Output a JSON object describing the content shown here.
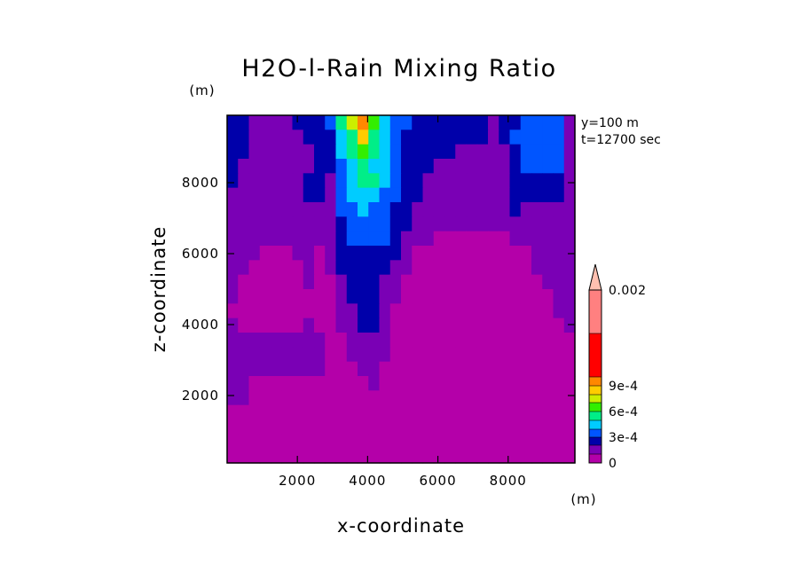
{
  "chart_data": {
    "type": "heatmap",
    "title": "H2O-l-Rain Mixing Ratio",
    "xlabel": "x-coordinate",
    "ylabel": "z-coordinate",
    "x_unit": "(m)",
    "y_unit": "(m)",
    "annotations": [
      "y=100 m",
      "t=12700 sec"
    ],
    "xlim": [
      0,
      9900
    ],
    "ylim": [
      100,
      9900
    ],
    "x_ticks": [
      2000,
      4000,
      6000,
      8000
    ],
    "y_ticks": [
      2000,
      4000,
      6000,
      8000
    ],
    "colorbar": {
      "levels": [
        0,
        0.0001,
        0.0002,
        0.0003,
        0.0004,
        0.0005,
        0.0006,
        0.0007,
        0.0008,
        0.0009,
        0.001,
        0.0015,
        0.002
      ],
      "colors": [
        "#b400a9",
        "#7a00b5",
        "#0000aa",
        "#0055ff",
        "#00ccff",
        "#00ee88",
        "#33ee00",
        "#ccee00",
        "#ffcc00",
        "#ff8800",
        "#ff0000",
        "#ff8080",
        "#ffc0b0"
      ],
      "tick_labels": [
        "0",
        "3e-4",
        "6e-4",
        "9e-4",
        "0.002"
      ],
      "extend": "max"
    },
    "grid_z": [
      [
        2,
        2,
        1,
        1,
        1,
        1,
        2,
        2,
        2,
        3,
        5,
        7,
        9,
        6,
        4,
        3,
        3,
        2,
        2,
        2,
        2,
        2,
        2,
        2,
        1,
        2,
        2,
        3,
        3,
        3,
        3,
        1
      ],
      [
        2,
        2,
        1,
        1,
        1,
        1,
        1,
        2,
        2,
        2,
        4,
        5,
        8,
        5,
        4,
        3,
        2,
        2,
        2,
        2,
        2,
        2,
        2,
        2,
        1,
        2,
        3,
        3,
        3,
        3,
        3,
        1
      ],
      [
        2,
        2,
        1,
        1,
        1,
        1,
        1,
        1,
        2,
        2,
        4,
        5,
        6,
        5,
        4,
        3,
        2,
        2,
        2,
        2,
        2,
        1,
        1,
        1,
        1,
        1,
        2,
        3,
        3,
        3,
        3,
        1
      ],
      [
        2,
        1,
        1,
        1,
        1,
        1,
        1,
        1,
        2,
        2,
        3,
        4,
        5,
        4,
        4,
        3,
        2,
        2,
        2,
        1,
        1,
        1,
        1,
        1,
        1,
        1,
        2,
        3,
        3,
        3,
        3,
        1
      ],
      [
        2,
        1,
        1,
        1,
        1,
        1,
        1,
        2,
        2,
        1,
        3,
        4,
        5,
        5,
        4,
        3,
        2,
        2,
        1,
        1,
        1,
        1,
        1,
        1,
        1,
        1,
        2,
        2,
        2,
        2,
        2,
        1
      ],
      [
        1,
        1,
        1,
        1,
        1,
        1,
        1,
        2,
        2,
        1,
        3,
        4,
        4,
        4,
        3,
        3,
        2,
        2,
        1,
        1,
        1,
        1,
        1,
        1,
        1,
        1,
        2,
        2,
        2,
        2,
        2,
        1
      ],
      [
        1,
        1,
        1,
        1,
        1,
        1,
        1,
        1,
        1,
        1,
        3,
        3,
        4,
        3,
        3,
        2,
        2,
        1,
        1,
        1,
        1,
        1,
        1,
        1,
        1,
        1,
        2,
        1,
        1,
        1,
        1,
        1
      ],
      [
        1,
        1,
        1,
        1,
        1,
        1,
        1,
        1,
        1,
        1,
        2,
        3,
        3,
        3,
        3,
        2,
        2,
        1,
        1,
        1,
        1,
        1,
        1,
        1,
        1,
        1,
        1,
        1,
        1,
        1,
        1,
        1
      ],
      [
        1,
        1,
        1,
        1,
        1,
        1,
        1,
        1,
        1,
        1,
        2,
        3,
        3,
        3,
        3,
        2,
        1,
        1,
        1,
        0,
        0,
        0,
        0,
        0,
        0,
        0,
        1,
        1,
        1,
        1,
        1,
        1
      ],
      [
        1,
        1,
        1,
        0,
        0,
        0,
        1,
        1,
        0,
        1,
        2,
        2,
        2,
        2,
        2,
        2,
        1,
        0,
        0,
        0,
        0,
        0,
        0,
        0,
        0,
        0,
        0,
        0,
        1,
        1,
        1,
        1
      ],
      [
        1,
        1,
        0,
        0,
        0,
        0,
        0,
        1,
        0,
        1,
        2,
        2,
        2,
        2,
        2,
        1,
        1,
        0,
        0,
        0,
        0,
        0,
        0,
        0,
        0,
        0,
        0,
        0,
        1,
        1,
        1,
        1
      ],
      [
        1,
        0,
        0,
        0,
        0,
        0,
        0,
        1,
        0,
        0,
        1,
        2,
        2,
        2,
        1,
        1,
        0,
        0,
        0,
        0,
        0,
        0,
        0,
        0,
        0,
        0,
        0,
        0,
        0,
        1,
        1,
        1
      ],
      [
        1,
        0,
        0,
        0,
        0,
        0,
        0,
        0,
        0,
        0,
        1,
        2,
        2,
        2,
        1,
        1,
        0,
        0,
        0,
        0,
        0,
        0,
        0,
        0,
        0,
        0,
        0,
        0,
        0,
        0,
        1,
        1
      ],
      [
        0,
        0,
        0,
        0,
        0,
        0,
        0,
        0,
        0,
        0,
        1,
        1,
        2,
        2,
        1,
        0,
        0,
        0,
        0,
        0,
        0,
        0,
        0,
        0,
        0,
        0,
        0,
        0,
        0,
        0,
        1,
        1
      ],
      [
        1,
        0,
        0,
        0,
        0,
        0,
        0,
        1,
        0,
        0,
        1,
        1,
        2,
        2,
        1,
        0,
        0,
        0,
        0,
        0,
        0,
        0,
        0,
        0,
        0,
        0,
        0,
        0,
        0,
        0,
        0,
        1
      ],
      [
        1,
        1,
        1,
        1,
        1,
        1,
        1,
        1,
        1,
        0,
        0,
        1,
        1,
        1,
        1,
        0,
        0,
        0,
        0,
        0,
        0,
        0,
        0,
        0,
        0,
        0,
        0,
        0,
        0,
        0,
        0,
        0
      ],
      [
        1,
        1,
        1,
        1,
        1,
        1,
        1,
        1,
        1,
        0,
        0,
        1,
        1,
        1,
        1,
        0,
        0,
        0,
        0,
        0,
        0,
        0,
        0,
        0,
        0,
        0,
        0,
        0,
        0,
        0,
        0,
        0
      ],
      [
        1,
        1,
        1,
        1,
        1,
        1,
        1,
        1,
        1,
        0,
        0,
        0,
        1,
        1,
        0,
        0,
        0,
        0,
        0,
        0,
        0,
        0,
        0,
        0,
        0,
        0,
        0,
        0,
        0,
        0,
        0,
        0
      ],
      [
        1,
        1,
        0,
        0,
        0,
        0,
        0,
        0,
        0,
        0,
        0,
        0,
        0,
        1,
        0,
        0,
        0,
        0,
        0,
        0,
        0,
        0,
        0,
        0,
        0,
        0,
        0,
        0,
        0,
        0,
        0,
        0
      ],
      [
        1,
        1,
        0,
        0,
        0,
        0,
        0,
        0,
        0,
        0,
        0,
        0,
        0,
        0,
        0,
        0,
        0,
        0,
        0,
        0,
        0,
        0,
        0,
        0,
        0,
        0,
        0,
        0,
        0,
        0,
        0,
        0
      ],
      [
        0,
        0,
        0,
        0,
        0,
        0,
        0,
        0,
        0,
        0,
        0,
        0,
        0,
        0,
        0,
        0,
        0,
        0,
        0,
        0,
        0,
        0,
        0,
        0,
        0,
        0,
        0,
        0,
        0,
        0,
        0,
        0
      ],
      [
        0,
        0,
        0,
        0,
        0,
        0,
        0,
        0,
        0,
        0,
        0,
        0,
        0,
        0,
        0,
        0,
        0,
        0,
        0,
        0,
        0,
        0,
        0,
        0,
        0,
        0,
        0,
        0,
        0,
        0,
        0,
        0
      ],
      [
        0,
        0,
        0,
        0,
        0,
        0,
        0,
        0,
        0,
        0,
        0,
        0,
        0,
        0,
        0,
        0,
        0,
        0,
        0,
        0,
        0,
        0,
        0,
        0,
        0,
        0,
        0,
        0,
        0,
        0,
        0,
        0
      ],
      [
        0,
        0,
        0,
        0,
        0,
        0,
        0,
        0,
        0,
        0,
        0,
        0,
        0,
        0,
        0,
        0,
        0,
        0,
        0,
        0,
        0,
        0,
        0,
        0,
        0,
        0,
        0,
        0,
        0,
        0,
        0,
        0
      ]
    ]
  }
}
